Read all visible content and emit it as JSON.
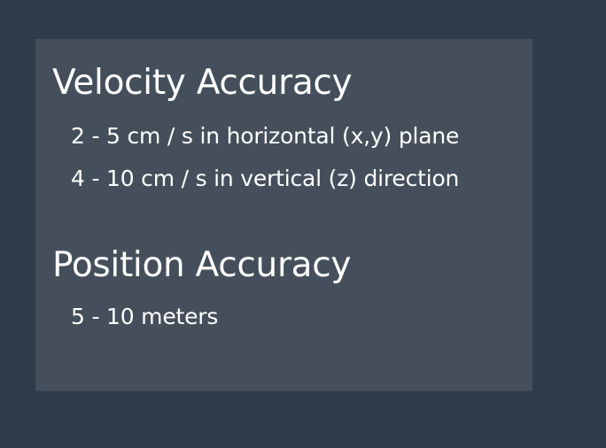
{
  "sections": [
    {
      "heading": "Velocity Accuracy",
      "items": [
        "2 - 5 cm / s in horizontal (x,y) plane",
        "4 - 10 cm / s in vertical (z) direction"
      ]
    },
    {
      "heading": "Position Accuracy",
      "items": [
        "5 - 10 meters"
      ]
    }
  ],
  "colors": {
    "background": "#2e3b48",
    "card": "#444f5b",
    "text": "#ffffff"
  }
}
